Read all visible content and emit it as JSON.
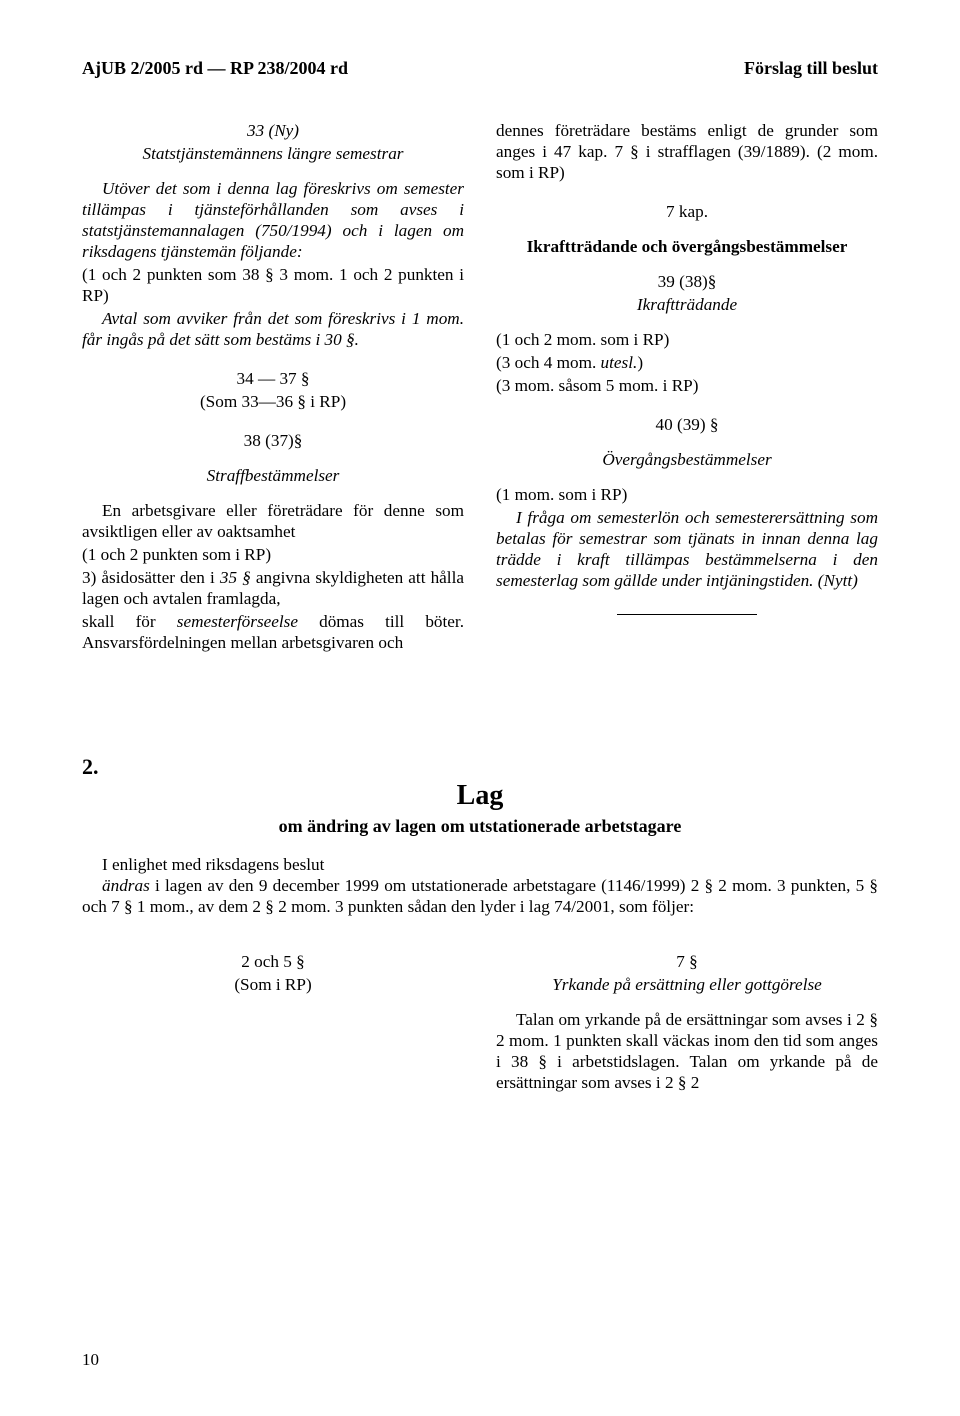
{
  "header": {
    "left": "AjUB 2/2005 rd — RP 238/2004 rd",
    "right": "Förslag till beslut"
  },
  "col_left": {
    "s33_num": "33 (Ny)",
    "s33_title": "Statstjänstemännens längre semestrar",
    "s33_body": "Utöver det som i denna lag föreskrivs om semester tillämpas i tjänsteförhållanden som avses i statstjänstemannalagen (750/1994) och i lagen om riksdagens tjänstemän följande:",
    "s33_item": "(1 och 2 punkten som 38 § 3 mom. 1 och 2 punkten i RP)",
    "s33_avtal": "Avtal som avviker från det som föreskrivs i 1 mom. får ingås på det sätt som bestäms i 30 §.",
    "s34_37_line1": "34 — 37 §",
    "s34_37_line2": "(Som 33—36 § i RP)",
    "s38_num": "38 (37)§",
    "s38_title": "Straffbestämmelser",
    "s38_body": "En arbetsgivare eller företrädare för denne som avsiktligen eller av oaktsamhet",
    "s38_item1": "(1 och 2 punkten som i RP)",
    "s38_item3_a": "3) åsidosätter den i ",
    "s38_item3_b": "35 §",
    "s38_item3_c": " angivna skyldigheten att hålla lagen och avtalen framlagda,",
    "s38_tail_a": "skall för ",
    "s38_tail_b": "semesterförseelse",
    "s38_tail_c": " dömas till böter. Ansvarsfördelningen mellan arbetsgivaren och"
  },
  "col_right": {
    "top_body": "dennes företrädare bestäms enligt de grunder som anges i 47 kap. 7 § i strafflagen (39/1889). (2 mom. som i RP)",
    "kap7": "7 kap.",
    "ikraft_title": "Ikraftträdande och övergångsbestämmelser",
    "s39_num": "39 (38)§",
    "s39_title": "Ikraftträdande",
    "s39_l1": "(1 och 2 mom. som i RP)",
    "s39_l2_a": "(3 och 4 mom. ",
    "s39_l2_b": "utesl.",
    "s39_l2_c": ")",
    "s39_l3": "(3 mom. såsom 5 mom. i RP)",
    "s40_num": "40 (39) §",
    "s40_title": "Övergångsbestämmelser",
    "s40_l1": "(1 mom. som i RP)",
    "s40_body": "I fråga om semesterlön och semesterersättning som betalas för semestrar som tjänats in innan denna lag trädde i kraft tillämpas bestämmelserna i den semesterlag som gällde under intjäningstiden. (Nytt)"
  },
  "law2": {
    "num": "2.",
    "title": "Lag",
    "sub": "om ändring av lagen om utstationerade arbetstagare",
    "intro_l1": "I enlighet med riksdagens beslut",
    "intro_body_a": "ändras",
    "intro_body_b": " i lagen av den 9 december 1999 om utstationerade arbetstagare (1146/1999) 2 § 2 mom. 3 punkten, 5 § och 7 § 1 mom., av dem 2 § 2 mom. 3 punkten sådan den lyder i lag 74/2001, som följer:",
    "left_l1": "2 och 5 §",
    "left_l2": "(Som i RP)",
    "right_l1": "7 §",
    "right_title": "Yrkande på ersättning eller gottgörelse",
    "right_body": "Talan om yrkande på de ersättningar som avses i 2 § 2 mom. 1 punkten skall väckas inom den tid som anges i 38 § i arbetstidslagen. Talan om yrkande på de ersättningar som avses i 2 § 2"
  },
  "page_number": "10"
}
